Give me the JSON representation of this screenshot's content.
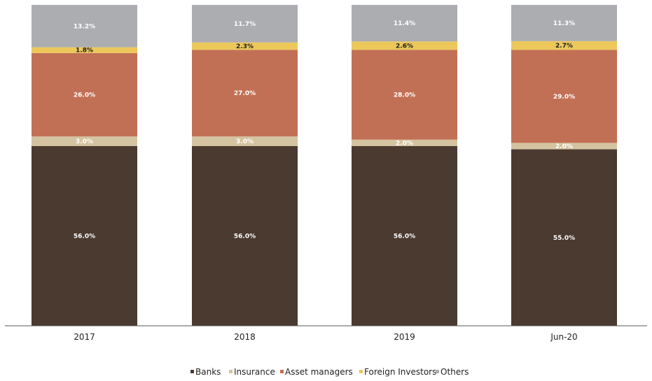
{
  "chart_data": {
    "type": "bar",
    "stacked": true,
    "title": "",
    "xlabel": "",
    "ylabel": "",
    "ylim": [
      0,
      100
    ],
    "grid": false,
    "legend_placement": "bottom",
    "categories": [
      "2017",
      "2018",
      "2019",
      "Jun-20"
    ],
    "series": [
      {
        "name": "Banks",
        "color": "#4a3a2f",
        "label_color": "#ffffff",
        "values": [
          56.0,
          56.0,
          56.0,
          55.0
        ],
        "labels": [
          "56.0%",
          "56.0%",
          "56.0%",
          "55.0%"
        ]
      },
      {
        "name": "Insurance",
        "color": "#d4c3a0",
        "label_color": "#ffffff",
        "values": [
          3.0,
          3.0,
          2.0,
          2.0
        ],
        "labels": [
          "3.0%",
          "3.0%",
          "2.0%",
          "2.0%"
        ]
      },
      {
        "name": "Asset managers",
        "color": "#c27055",
        "label_color": "#ffffff",
        "values": [
          26.0,
          27.0,
          28.0,
          29.0
        ],
        "labels": [
          "26.0%",
          "27.0%",
          "28.0%",
          "29.0%"
        ]
      },
      {
        "name": "Foreign Investors",
        "color": "#ecc85a",
        "label_color": "#222222",
        "values": [
          1.8,
          2.3,
          2.6,
          2.7
        ],
        "labels": [
          "1.8%",
          "2.3%",
          "2.6%",
          "2.7%"
        ]
      },
      {
        "name": "Others",
        "color": "#acadb0",
        "label_color": "#ffffff",
        "values": [
          13.2,
          11.7,
          11.4,
          11.3
        ],
        "labels": [
          "13.2%",
          "11.7%",
          "11.4%",
          "11.3%"
        ]
      }
    ]
  }
}
